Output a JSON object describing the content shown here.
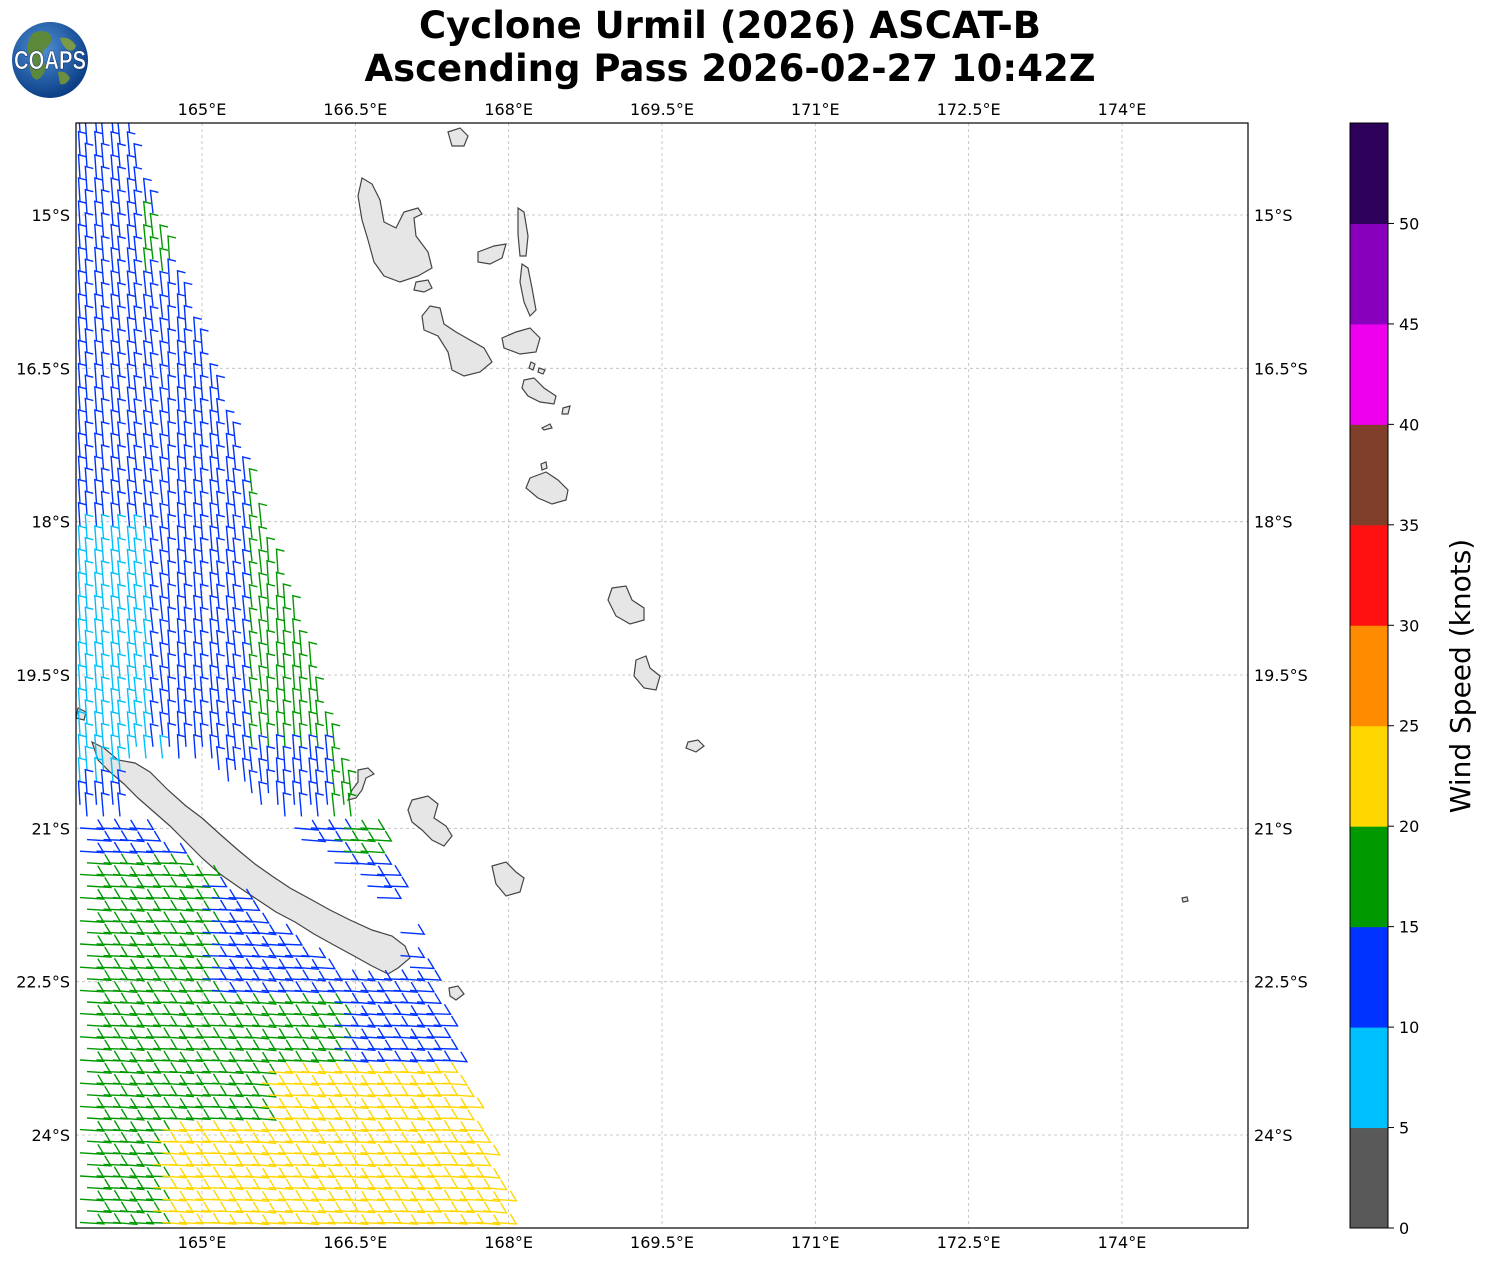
{
  "title": {
    "line1": "Cyclone Urmil (2026) ASCAT-B",
    "line2": "Ascending Pass 2026-02-27 10:42Z"
  },
  "logo": {
    "text": "COAPS",
    "icon": "globe-logo"
  },
  "map": {
    "lon_range": [
      163.75,
      175.2
    ],
    "lat_range": [
      -25.05,
      -14.1
    ],
    "lon_ticks": [
      "165°E",
      "166.5°E",
      "168°E",
      "169.5°E",
      "171°E",
      "172.5°E",
      "174°E"
    ],
    "lat_ticks": [
      "15°S",
      "16.5°S",
      "18°S",
      "19.5°S",
      "21°S",
      "22.5°S",
      "24°S"
    ],
    "gridlines": true,
    "land_color": "#e6e6e6",
    "coast_color": "#444444"
  },
  "colorbar": {
    "label": "Wind Speed (knots)",
    "tick_labels": [
      "0",
      "5",
      "10",
      "15",
      "20",
      "25",
      "30",
      "35",
      "40",
      "45",
      "50"
    ],
    "colors": [
      "#595959",
      "#00bfff",
      "#0033ff",
      "#009900",
      "#ffd700",
      "#ff8c00",
      "#ff1111",
      "#7f3f2a",
      "#ee00ee",
      "#8800bb",
      "#2d005a"
    ]
  }
}
